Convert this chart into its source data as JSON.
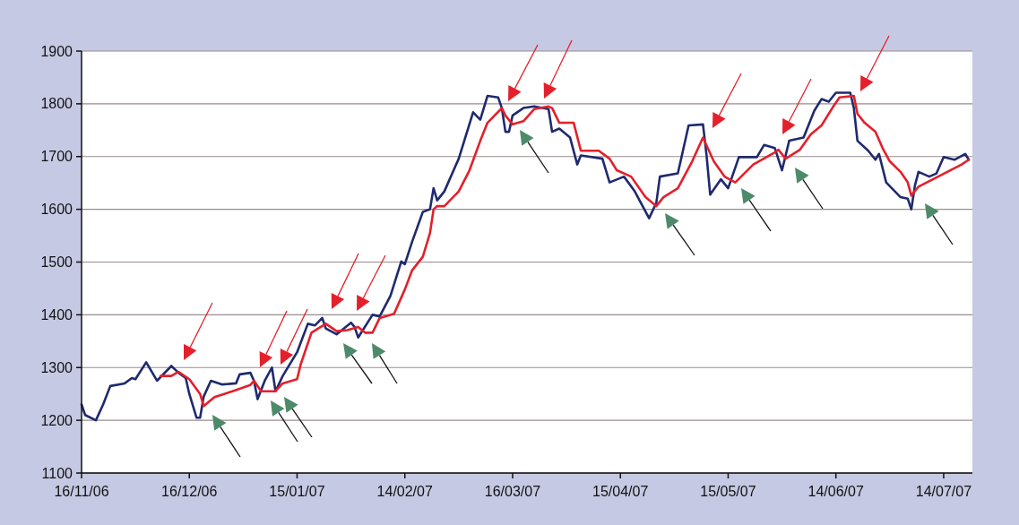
{
  "chart_data": {
    "type": "line",
    "xlim": [
      "2006-11-16",
      "2007-07-22"
    ],
    "ylim": [
      1100,
      1900
    ],
    "yticks": [
      1100,
      1200,
      1300,
      1400,
      1500,
      1600,
      1700,
      1800,
      1900
    ],
    "xticks": [
      {
        "value": "2006-11-16",
        "label": "16/11/06"
      },
      {
        "value": "2006-12-16",
        "label": "16/12/06"
      },
      {
        "value": "2007-01-15",
        "label": "15/01/07"
      },
      {
        "value": "2007-02-14",
        "label": "14/02/07"
      },
      {
        "value": "2007-03-16",
        "label": "16/03/07"
      },
      {
        "value": "2007-04-15",
        "label": "15/04/07"
      },
      {
        "value": "2007-05-15",
        "label": "15/05/07"
      },
      {
        "value": "2007-06-14",
        "label": "14/06/07"
      },
      {
        "value": "2007-07-14",
        "label": "14/07/07"
      }
    ],
    "grid": "y",
    "series": [
      {
        "color": "#1f2a6e",
        "x": [
          "2006-11-16",
          "2006-11-17",
          "2006-11-20",
          "2006-11-22",
          "2006-11-24",
          "2006-11-28",
          "2006-11-30",
          "2006-12-01",
          "2006-12-04",
          "2006-12-07",
          "2006-12-11",
          "2006-12-13",
          "2006-12-15",
          "2006-12-16",
          "2006-12-18",
          "2006-12-19",
          "2006-12-20",
          "2006-12-22",
          "2006-12-25",
          "2006-12-29",
          "2006-12-30",
          "2007-01-02",
          "2007-01-03",
          "2007-01-04",
          "2007-01-06",
          "2007-01-08",
          "2007-01-09",
          "2007-01-11",
          "2007-01-15",
          "2007-01-18",
          "2007-01-20",
          "2007-01-22",
          "2007-01-23",
          "2007-01-26",
          "2007-01-30",
          "2007-01-31",
          "2007-02-01",
          "2007-02-05",
          "2007-02-07",
          "2007-02-10",
          "2007-02-13",
          "2007-02-14",
          "2007-02-16",
          "2007-02-19",
          "2007-02-21",
          "2007-02-22",
          "2007-02-23",
          "2007-02-25",
          "2007-03-01",
          "2007-03-05",
          "2007-03-07",
          "2007-03-09",
          "2007-03-12",
          "2007-03-13",
          "2007-03-14",
          "2007-03-15",
          "2007-03-16",
          "2007-03-19",
          "2007-03-22",
          "2007-03-26",
          "2007-03-27",
          "2007-03-29",
          "2007-04-01",
          "2007-04-03",
          "2007-04-04",
          "2007-04-10",
          "2007-04-12",
          "2007-04-16",
          "2007-04-19",
          "2007-04-23",
          "2007-04-25",
          "2007-04-26",
          "2007-05-01",
          "2007-05-04",
          "2007-05-08",
          "2007-05-09",
          "2007-05-10",
          "2007-05-13",
          "2007-05-15",
          "2007-05-18",
          "2007-05-23",
          "2007-05-25",
          "2007-05-28",
          "2007-05-30",
          "2007-06-01",
          "2007-06-05",
          "2007-06-08",
          "2007-06-10",
          "2007-06-12",
          "2007-06-14",
          "2007-06-18",
          "2007-06-19",
          "2007-06-20",
          "2007-06-23",
          "2007-06-25",
          "2007-06-26",
          "2007-06-28",
          "2007-07-02",
          "2007-07-04",
          "2007-07-05",
          "2007-07-06",
          "2007-07-07",
          "2007-07-10",
          "2007-07-12",
          "2007-07-14",
          "2007-07-17",
          "2007-07-20",
          "2007-07-21"
        ],
        "values": [
          1230,
          1210,
          1200,
          1230,
          1265,
          1270,
          1280,
          1278,
          1310,
          1275,
          1303,
          1290,
          1280,
          1250,
          1205,
          1205,
          1245,
          1275,
          1268,
          1270,
          1287,
          1290,
          1275,
          1240,
          1275,
          1300,
          1255,
          1284,
          1329,
          1383,
          1380,
          1394,
          1374,
          1363,
          1385,
          1377,
          1357,
          1400,
          1397,
          1436,
          1501,
          1496,
          1538,
          1595,
          1600,
          1640,
          1617,
          1634,
          1696,
          1784,
          1770,
          1815,
          1812,
          1792,
          1747,
          1747,
          1778,
          1792,
          1795,
          1790,
          1747,
          1753,
          1736,
          1685,
          1702,
          1696,
          1651,
          1662,
          1634,
          1583,
          1612,
          1662,
          1668,
          1759,
          1761,
          1702,
          1628,
          1657,
          1640,
          1699,
          1699,
          1722,
          1716,
          1674,
          1730,
          1736,
          1787,
          1809,
          1804,
          1821,
          1821,
          1792,
          1730,
          1711,
          1694,
          1705,
          1651,
          1623,
          1620,
          1600,
          1645,
          1671,
          1662,
          1668,
          1699,
          1694,
          1705,
          1694
        ]
      },
      {
        "color": "#e3202b",
        "x": [
          "2006-12-08",
          "2006-12-11",
          "2006-12-13",
          "2006-12-16",
          "2006-12-19",
          "2006-12-20",
          "2006-12-23",
          "2006-12-28",
          "2007-01-02",
          "2007-01-03",
          "2007-01-05",
          "2007-01-09",
          "2007-01-11",
          "2007-01-15",
          "2007-01-16",
          "2007-01-19",
          "2007-01-23",
          "2007-01-26",
          "2007-01-29",
          "2007-02-01",
          "2007-02-03",
          "2007-02-05",
          "2007-02-07",
          "2007-02-11",
          "2007-02-14",
          "2007-02-16",
          "2007-02-19",
          "2007-02-21",
          "2007-02-22",
          "2007-02-23",
          "2007-02-25",
          "2007-03-01",
          "2007-03-04",
          "2007-03-07",
          "2007-03-09",
          "2007-03-13",
          "2007-03-14",
          "2007-03-16",
          "2007-03-19",
          "2007-03-22",
          "2007-03-26",
          "2007-03-27",
          "2007-03-29",
          "2007-04-02",
          "2007-04-04",
          "2007-04-09",
          "2007-04-12",
          "2007-04-14",
          "2007-04-18",
          "2007-04-22",
          "2007-04-25",
          "2007-04-27",
          "2007-05-01",
          "2007-05-05",
          "2007-05-08",
          "2007-05-11",
          "2007-05-14",
          "2007-05-17",
          "2007-05-22",
          "2007-05-28",
          "2007-05-29",
          "2007-05-31",
          "2007-06-04",
          "2007-06-07",
          "2007-06-10",
          "2007-06-13",
          "2007-06-15",
          "2007-06-19",
          "2007-06-20",
          "2007-06-22",
          "2007-06-25",
          "2007-06-27",
          "2007-06-29",
          "2007-07-02",
          "2007-07-04",
          "2007-07-05",
          "2007-07-07",
          "2007-07-11",
          "2007-07-15",
          "2007-07-19",
          "2007-07-21"
        ],
        "values": [
          1284,
          1284,
          1292,
          1278,
          1250,
          1227,
          1244,
          1255,
          1267,
          1275,
          1255,
          1255,
          1270,
          1278,
          1306,
          1366,
          1383,
          1369,
          1371,
          1377,
          1366,
          1366,
          1394,
          1402,
          1448,
          1484,
          1510,
          1555,
          1600,
          1606,
          1606,
          1634,
          1674,
          1730,
          1764,
          1792,
          1778,
          1761,
          1767,
          1790,
          1795,
          1792,
          1764,
          1764,
          1711,
          1711,
          1696,
          1674,
          1662,
          1623,
          1606,
          1623,
          1640,
          1691,
          1736,
          1691,
          1662,
          1651,
          1685,
          1708,
          1713,
          1696,
          1713,
          1742,
          1759,
          1792,
          1812,
          1815,
          1781,
          1764,
          1747,
          1716,
          1691,
          1671,
          1651,
          1626,
          1643,
          1657,
          1671,
          1685,
          1694
        ]
      }
    ]
  }
}
